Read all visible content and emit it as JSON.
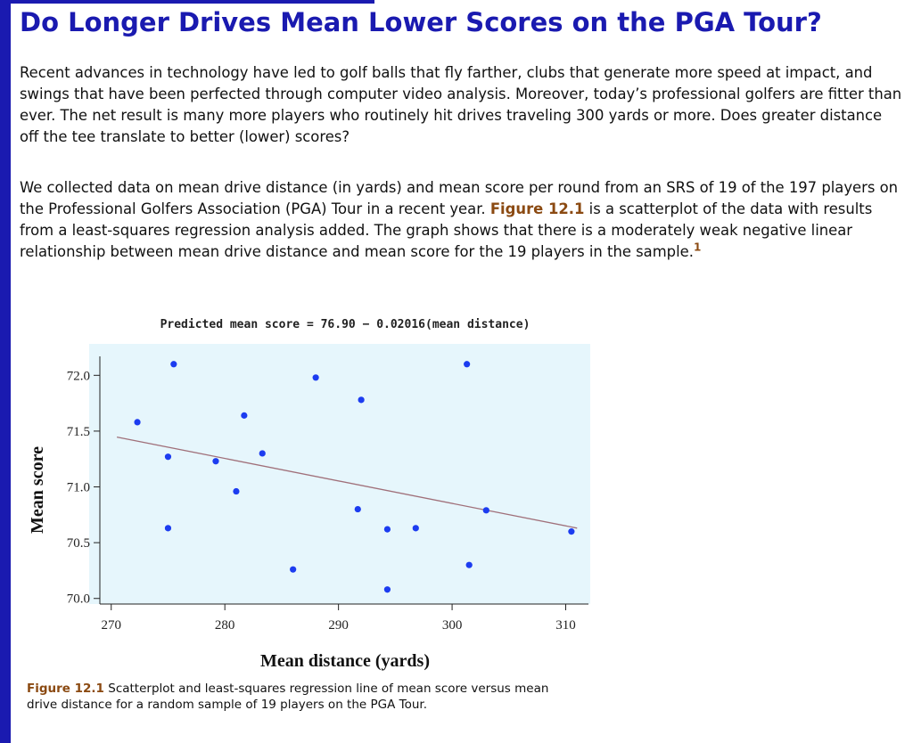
{
  "page": {
    "title": "Do Longer Drives Mean Lower Scores on the PGA Tour?",
    "paragraph1": "Recent advances in technology have led to golf balls that fly farther, clubs that generate more speed at impact, and swings that have been perfected through computer video analysis. Moreover, today’s professional golfers are fitter than ever. The net result is many more players who routinely hit drives traveling 300 yards or more. Does greater distance off the tee translate to better (lower) scores?",
    "paragraph2_before": "We collected data on mean drive distance (in yards) and mean score per round from an SRS of 19 of the 197 players on the Professional Golfers Association (PGA) Tour in a recent year.",
    "paragraph2_figref": "Figure 12.1",
    "paragraph2_after": "is a scatterplot of the data with results from a least-squares regression analysis added. The graph shows that there is a moderately weak negative linear relationship between mean drive distance and mean score for the 19 players in the sample.",
    "footnote_marker": "1"
  },
  "figure": {
    "caption_label": "Figure 12.1",
    "caption_text": "Scatterplot and least-squares regression line of mean score versus mean drive distance for a random sample of 19 players on the PGA Tour."
  },
  "colors": {
    "heading": "#1a1ab0",
    "plot_background": "#e6f6fc",
    "points": "#1c3cf0",
    "regression_line": "#a0707a",
    "figure_ref": "#8b4a12"
  },
  "chart_data": {
    "type": "scatter",
    "title": "Predicted mean score = 76.90 − 0.02016(mean distance)",
    "xlabel": "Mean distance (yards)",
    "ylabel": "Mean score",
    "xlim": [
      269,
      312
    ],
    "ylim": [
      69.95,
      72.25
    ],
    "xticks": [
      270,
      280,
      290,
      300,
      310
    ],
    "xtick_labels": [
      "270",
      "280",
      "290",
      "300",
      "310"
    ],
    "yticks": [
      70.0,
      70.5,
      71.0,
      71.5,
      72.0
    ],
    "ytick_labels": [
      "70.0",
      "70.5",
      "71.0",
      "71.5",
      "72.0"
    ],
    "grid": false,
    "regression": {
      "intercept": 76.9,
      "slope": -0.02016,
      "x_range": [
        270.5,
        311
      ]
    },
    "points": [
      {
        "x": 272.3,
        "y": 71.58
      },
      {
        "x": 275.0,
        "y": 71.27
      },
      {
        "x": 275.0,
        "y": 70.63
      },
      {
        "x": 275.5,
        "y": 72.1
      },
      {
        "x": 279.2,
        "y": 71.23
      },
      {
        "x": 281.0,
        "y": 70.96
      },
      {
        "x": 281.7,
        "y": 71.64
      },
      {
        "x": 283.3,
        "y": 71.3
      },
      {
        "x": 286.0,
        "y": 70.26
      },
      {
        "x": 288.0,
        "y": 71.98
      },
      {
        "x": 291.7,
        "y": 70.8
      },
      {
        "x": 292.0,
        "y": 71.78
      },
      {
        "x": 294.3,
        "y": 70.62
      },
      {
        "x": 294.3,
        "y": 70.08
      },
      {
        "x": 296.8,
        "y": 70.63
      },
      {
        "x": 301.3,
        "y": 72.1
      },
      {
        "x": 301.5,
        "y": 70.3
      },
      {
        "x": 303.0,
        "y": 70.79
      },
      {
        "x": 310.5,
        "y": 70.6
      }
    ]
  }
}
